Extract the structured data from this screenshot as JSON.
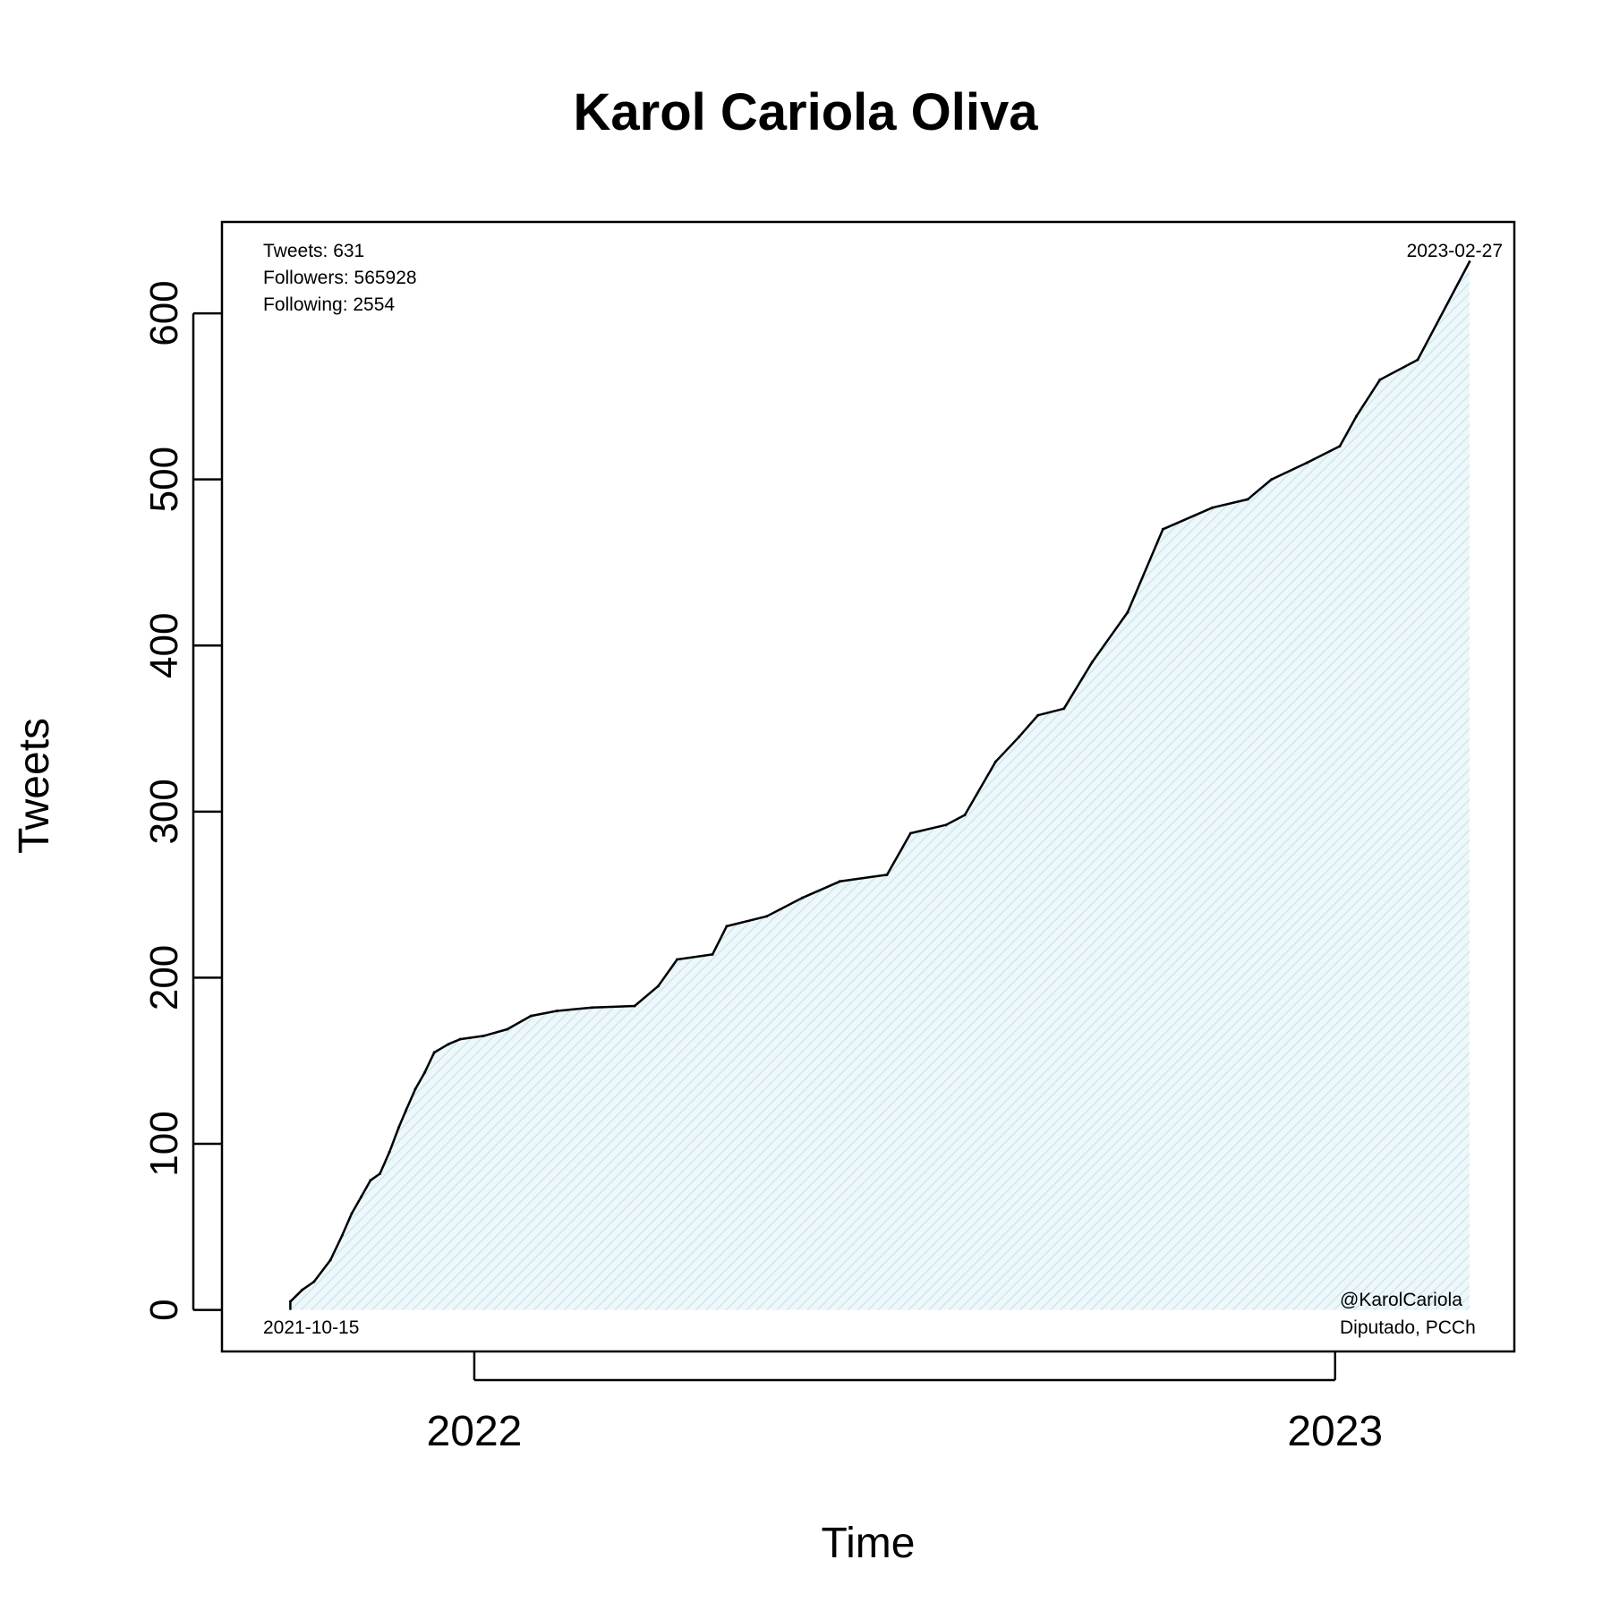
{
  "chart_data": {
    "type": "area",
    "title": "Karol Cariola Oliva",
    "xlabel": "Time",
    "ylabel": "Tweets",
    "x_range": [
      "2021-09-16",
      "2023-03-18"
    ],
    "ylim": [
      -25,
      655
    ],
    "y_ticks": [
      0,
      100,
      200,
      300,
      400,
      500,
      600
    ],
    "x_ticks": [
      {
        "date": "2022-01-01",
        "label": "2022"
      },
      {
        "date": "2023-01-01",
        "label": "2023"
      }
    ],
    "grid": false,
    "fill_color": "#d8eef5",
    "line_color": "#000000",
    "series": [
      {
        "x": [
          "2021-10-15",
          "2021-10-20",
          "2021-10-25",
          "2021-11-01",
          "2021-11-06",
          "2021-11-10",
          "2021-11-14",
          "2021-11-18",
          "2021-11-22",
          "2021-11-26",
          "2021-11-30",
          "2021-12-03",
          "2021-12-07",
          "2021-12-11",
          "2021-12-15",
          "2021-12-21",
          "2021-12-26",
          "2022-01-05",
          "2022-01-15",
          "2022-01-25",
          "2022-02-05",
          "2022-02-20",
          "2022-03-10",
          "2022-03-20",
          "2022-03-28",
          "2022-04-12",
          "2022-04-18",
          "2022-05-05",
          "2022-05-20",
          "2022-06-05",
          "2022-06-25",
          "2022-07-05",
          "2022-07-20",
          "2022-07-28",
          "2022-08-10",
          "2022-08-20",
          "2022-08-28",
          "2022-09-08",
          "2022-09-20",
          "2022-10-05",
          "2022-10-20",
          "2022-11-10",
          "2022-11-25",
          "2022-12-05",
          "2022-12-20",
          "2023-01-03",
          "2023-01-10",
          "2023-01-20",
          "2023-02-05",
          "2023-02-27"
        ],
        "y": [
          5,
          12,
          17,
          30,
          45,
          58,
          68,
          78,
          82,
          95,
          110,
          120,
          133,
          143,
          155,
          160,
          163,
          165,
          169,
          177,
          180,
          182,
          183,
          195,
          211,
          214,
          231,
          237,
          248,
          258,
          262,
          287,
          292,
          298,
          330,
          345,
          358,
          362,
          390,
          420,
          470,
          483,
          488,
          500,
          510,
          520,
          538,
          560,
          572,
          631
        ]
      }
    ],
    "annotations": {
      "stats": [
        "Tweets: 631",
        "Followers: 565928",
        "Following: 2554"
      ],
      "start_date": "2021-10-15",
      "end_date": "2023-02-27",
      "handle": "@KarolCariola",
      "affiliation": "Diputado, PCCh"
    }
  }
}
